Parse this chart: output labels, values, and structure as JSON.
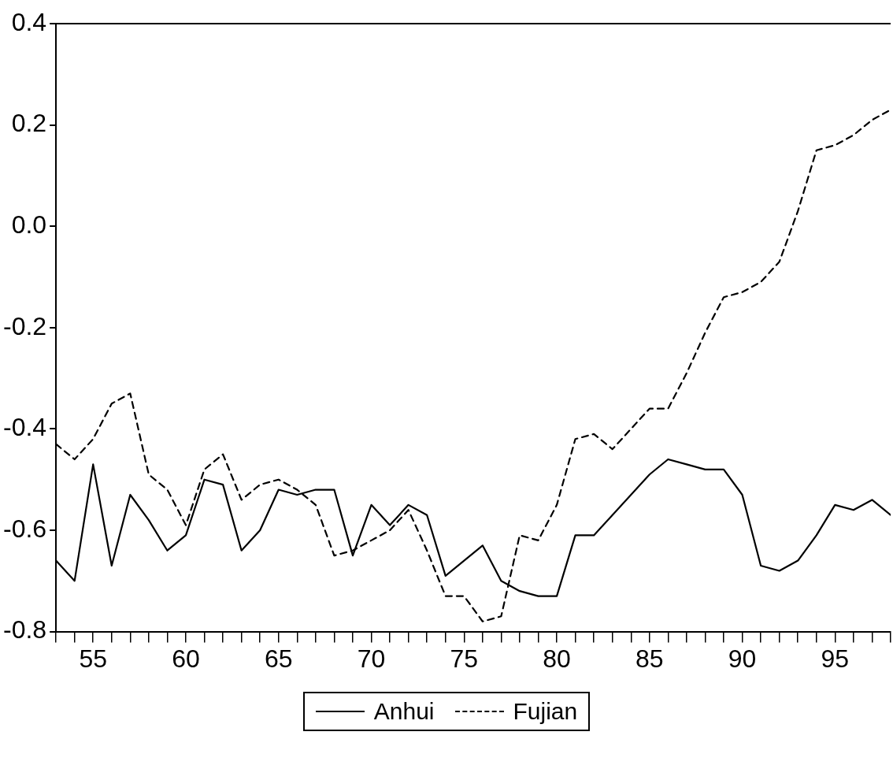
{
  "chart_data": {
    "type": "line",
    "x": [
      53,
      54,
      55,
      56,
      57,
      58,
      59,
      60,
      61,
      62,
      63,
      64,
      65,
      66,
      67,
      68,
      69,
      70,
      71,
      72,
      73,
      74,
      75,
      76,
      77,
      78,
      79,
      80,
      81,
      82,
      83,
      84,
      85,
      86,
      87,
      88,
      89,
      90,
      91,
      92,
      93,
      94,
      95,
      96,
      97,
      98
    ],
    "series": [
      {
        "name": "Anhui",
        "color": "#000000",
        "line_style": "solid",
        "values": [
          -0.66,
          -0.7,
          -0.47,
          -0.67,
          -0.53,
          -0.58,
          -0.64,
          -0.61,
          -0.5,
          -0.51,
          -0.64,
          -0.6,
          -0.52,
          -0.53,
          -0.52,
          -0.52,
          -0.65,
          -0.55,
          -0.59,
          -0.55,
          -0.57,
          -0.69,
          -0.66,
          -0.63,
          -0.7,
          -0.72,
          -0.73,
          -0.73,
          -0.61,
          -0.61,
          -0.57,
          -0.53,
          -0.49,
          -0.46,
          -0.47,
          -0.48,
          -0.48,
          -0.53,
          -0.67,
          -0.68,
          -0.66,
          -0.61,
          -0.55,
          -0.56,
          -0.54,
          -0.57
        ]
      },
      {
        "name": "Fujian",
        "color": "#000000",
        "line_style": "dashed",
        "values": [
          -0.43,
          -0.46,
          -0.42,
          -0.35,
          -0.33,
          -0.49,
          -0.52,
          -0.59,
          -0.48,
          -0.45,
          -0.54,
          -0.51,
          -0.5,
          -0.52,
          -0.55,
          -0.65,
          -0.64,
          -0.62,
          -0.6,
          -0.56,
          -0.64,
          -0.73,
          -0.73,
          -0.78,
          -0.77,
          -0.61,
          -0.62,
          -0.55,
          -0.42,
          -0.41,
          -0.44,
          -0.4,
          -0.36,
          -0.36,
          -0.29,
          -0.21,
          -0.14,
          -0.13,
          -0.11,
          -0.07,
          0.03,
          0.15,
          0.16,
          0.18,
          0.21,
          0.23
        ]
      }
    ],
    "xlim": [
      53,
      98
    ],
    "xticks": [
      {
        "value": 53,
        "label": null
      },
      {
        "value": 54,
        "label": null
      },
      55,
      {
        "value": 56,
        "label": null
      },
      {
        "value": 57,
        "label": null
      },
      {
        "value": 58,
        "label": null
      },
      {
        "value": 59,
        "label": null
      },
      60,
      {
        "value": 61,
        "label": null
      },
      {
        "value": 62,
        "label": null
      },
      {
        "value": 63,
        "label": null
      },
      {
        "value": 64,
        "label": null
      },
      65,
      {
        "value": 66,
        "label": null
      },
      {
        "value": 67,
        "label": null
      },
      {
        "value": 68,
        "label": null
      },
      {
        "value": 69,
        "label": null
      },
      70,
      {
        "value": 71,
        "label": null
      },
      {
        "value": 72,
        "label": null
      },
      {
        "value": 73,
        "label": null
      },
      {
        "value": 74,
        "label": null
      },
      75,
      {
        "value": 76,
        "label": null
      },
      {
        "value": 77,
        "label": null
      },
      {
        "value": 78,
        "label": null
      },
      {
        "value": 79,
        "label": null
      },
      80,
      {
        "value": 81,
        "label": null
      },
      {
        "value": 82,
        "label": null
      },
      {
        "value": 83,
        "label": null
      },
      {
        "value": 84,
        "label": null
      },
      85,
      {
        "value": 86,
        "label": null
      },
      {
        "value": 87,
        "label": null
      },
      {
        "value": 88,
        "label": null
      },
      {
        "value": 89,
        "label": null
      },
      90,
      {
        "value": 91,
        "label": null
      },
      {
        "value": 92,
        "label": null
      },
      {
        "value": 93,
        "label": null
      },
      {
        "value": 94,
        "label": null
      },
      95,
      {
        "value": 96,
        "label": null
      },
      {
        "value": 97,
        "label": null
      },
      {
        "value": 98,
        "label": null
      }
    ],
    "ylim": [
      -0.8,
      0.4
    ],
    "yticks": [
      {
        "value": -0.8,
        "label": "-0.8"
      },
      {
        "value": -0.6,
        "label": "-0.6"
      },
      {
        "value": -0.4,
        "label": "-0.4"
      },
      {
        "value": -0.2,
        "label": "-0.2"
      },
      {
        "value": 0,
        "label": "0.0"
      },
      {
        "value": 0.2,
        "label": "0.2"
      },
      {
        "value": 0.4,
        "label": "0.4"
      }
    ],
    "grid": false,
    "legend": "bottom",
    "marker": "none"
  }
}
